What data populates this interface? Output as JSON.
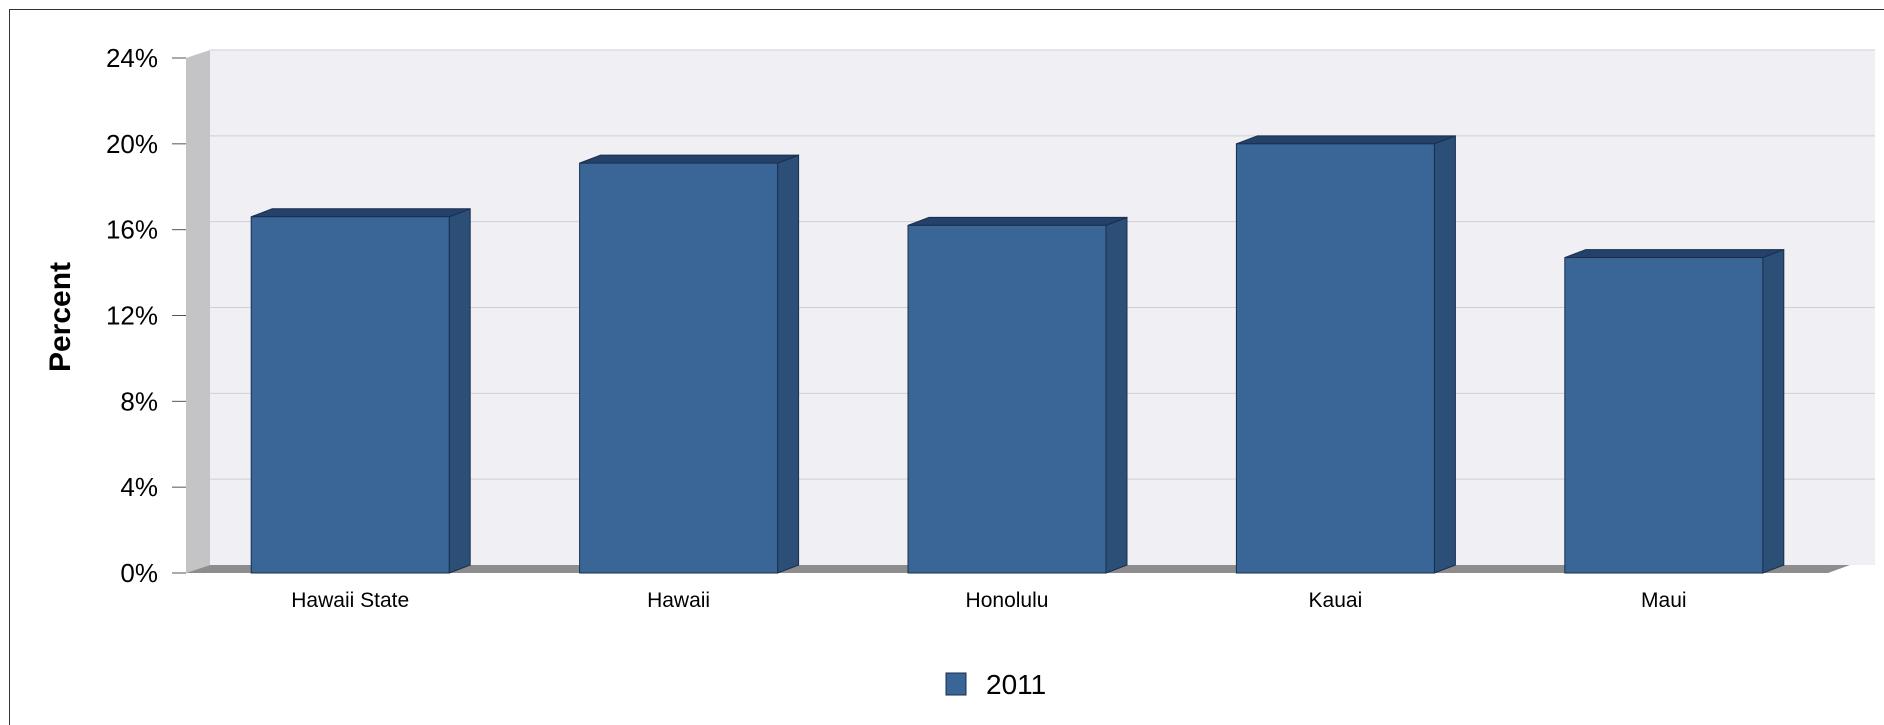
{
  "chart_data": {
    "type": "bar",
    "style": "3d",
    "title": "",
    "xlabel": "",
    "ylabel": "Percent",
    "categories": [
      "Hawaii State",
      "Hawaii",
      "Honolulu",
      "Kauai",
      "Maui"
    ],
    "series": [
      {
        "name": "2011",
        "values": [
          16.6,
          19.1,
          16.2,
          20.0,
          14.7
        ],
        "color": "#3a6697"
      }
    ],
    "ylim": [
      0,
      24
    ],
    "yticks": [
      0,
      4,
      8,
      12,
      16,
      20,
      24
    ],
    "ytick_labels": [
      "0%",
      "4%",
      "8%",
      "12%",
      "16%",
      "20%",
      "24%"
    ],
    "grid": true,
    "legend_position": "bottom-center",
    "colors": {
      "plot_background": "#efeff4",
      "gridline": "#cfcfd6",
      "side_wall": "#c4c4c7",
      "floor": "#8d8d8d",
      "bar_front": "#3a6697",
      "bar_side": "#2c4f78",
      "bar_top": "#24416a",
      "bar_outline": "#1a2f4d"
    }
  }
}
